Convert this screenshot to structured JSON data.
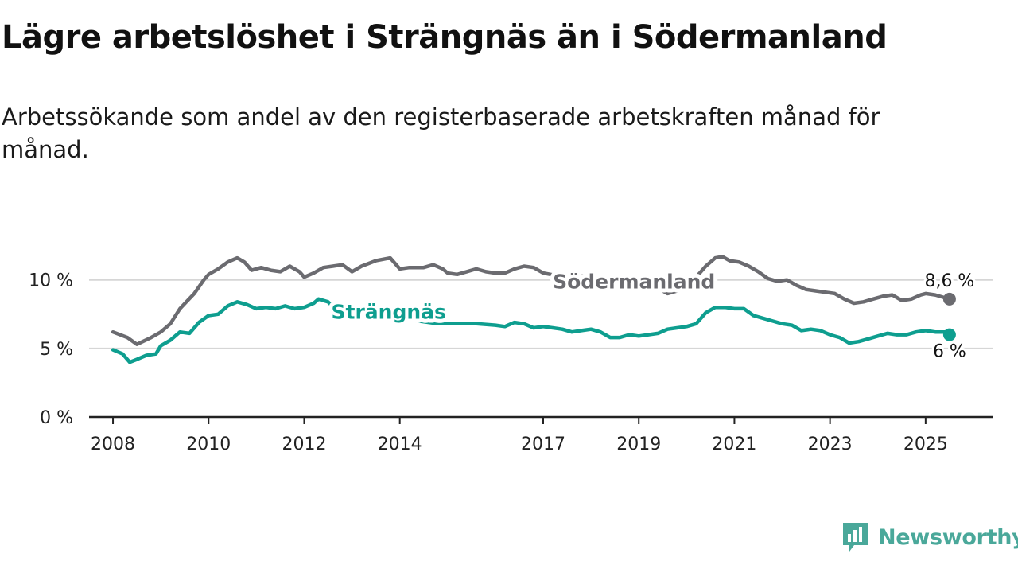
{
  "header": {
    "title": "Lägre arbetslöshet i Strängnäs än i Södermanland",
    "subtitle": "Arbetssökande som andel av den registerbaserade arbetskraften månad för månad."
  },
  "brand": {
    "name": "Newsworthy",
    "icon": "chart-speech-bubble-icon"
  },
  "colors": {
    "sodermanland": "#6b6b70",
    "strangnas": "#0e9e8f",
    "grid": "#d6d6d6",
    "axis": "#222222",
    "brand": "#4aa89a"
  },
  "chart_data": {
    "type": "line",
    "title": "Lägre arbetslöshet i Strängnäs än i Södermanland",
    "subtitle": "Arbetssökande som andel av den registerbaserade arbetskraften månad för månad.",
    "xlabel": "",
    "ylabel": "",
    "xlim": [
      2007.5,
      2026.4
    ],
    "ylim": [
      0,
      13
    ],
    "x_ticks": [
      2008,
      2010,
      2012,
      2014,
      2017,
      2019,
      2021,
      2023,
      2025
    ],
    "x_tick_labels": [
      "2008",
      "2010",
      "2012",
      "2014",
      "2017",
      "2019",
      "2021",
      "2023",
      "2025"
    ],
    "y_ticks": [
      0,
      5,
      10
    ],
    "y_tick_labels": [
      "0 %",
      "5 %",
      "10 %"
    ],
    "grid": true,
    "legend": "inline labels",
    "series": [
      {
        "name": "Södermanland",
        "label": "Södermanland",
        "end_label": "8,6 %",
        "points": [
          [
            2008.0,
            6.2
          ],
          [
            2008.3,
            5.8
          ],
          [
            2008.5,
            5.3
          ],
          [
            2008.8,
            5.8
          ],
          [
            2009.0,
            6.2
          ],
          [
            2009.2,
            6.8
          ],
          [
            2009.4,
            7.9
          ],
          [
            2009.7,
            9.0
          ],
          [
            2009.9,
            10.0
          ],
          [
            2010.0,
            10.4
          ],
          [
            2010.2,
            10.8
          ],
          [
            2010.4,
            11.3
          ],
          [
            2010.6,
            11.6
          ],
          [
            2010.75,
            11.3
          ],
          [
            2010.9,
            10.7
          ],
          [
            2011.1,
            10.9
          ],
          [
            2011.3,
            10.7
          ],
          [
            2011.5,
            10.6
          ],
          [
            2011.7,
            11.0
          ],
          [
            2011.9,
            10.6
          ],
          [
            2012.0,
            10.2
          ],
          [
            2012.2,
            10.5
          ],
          [
            2012.4,
            10.9
          ],
          [
            2012.6,
            11.0
          ],
          [
            2012.8,
            11.1
          ],
          [
            2013.0,
            10.6
          ],
          [
            2013.2,
            11.0
          ],
          [
            2013.5,
            11.4
          ],
          [
            2013.8,
            11.6
          ],
          [
            2014.0,
            10.8
          ],
          [
            2014.2,
            10.9
          ],
          [
            2014.5,
            10.9
          ],
          [
            2014.7,
            11.1
          ],
          [
            2014.9,
            10.8
          ],
          [
            2015.0,
            10.5
          ],
          [
            2015.2,
            10.4
          ],
          [
            2015.4,
            10.6
          ],
          [
            2015.6,
            10.8
          ],
          [
            2015.8,
            10.6
          ],
          [
            2016.0,
            10.5
          ],
          [
            2016.2,
            10.5
          ],
          [
            2016.4,
            10.8
          ],
          [
            2016.6,
            11.0
          ],
          [
            2016.8,
            10.9
          ],
          [
            2017.0,
            10.5
          ],
          [
            2017.3,
            10.3
          ],
          [
            2017.6,
            10.2
          ],
          [
            2017.9,
            10.3
          ],
          [
            2018.3,
            10.0
          ],
          [
            2018.7,
            9.9
          ],
          [
            2019.0,
            9.8
          ],
          [
            2019.3,
            9.6
          ],
          [
            2019.6,
            9.0
          ],
          [
            2019.9,
            9.3
          ],
          [
            2020.2,
            10.2
          ],
          [
            2020.4,
            11.0
          ],
          [
            2020.6,
            11.6
          ],
          [
            2020.75,
            11.7
          ],
          [
            2020.9,
            11.4
          ],
          [
            2021.1,
            11.3
          ],
          [
            2021.3,
            11.0
          ],
          [
            2021.5,
            10.6
          ],
          [
            2021.7,
            10.1
          ],
          [
            2021.9,
            9.9
          ],
          [
            2022.1,
            10.0
          ],
          [
            2022.3,
            9.6
          ],
          [
            2022.5,
            9.3
          ],
          [
            2022.7,
            9.2
          ],
          [
            2022.9,
            9.1
          ],
          [
            2023.1,
            9.0
          ],
          [
            2023.3,
            8.6
          ],
          [
            2023.5,
            8.3
          ],
          [
            2023.7,
            8.4
          ],
          [
            2023.9,
            8.6
          ],
          [
            2024.1,
            8.8
          ],
          [
            2024.3,
            8.9
          ],
          [
            2024.5,
            8.5
          ],
          [
            2024.7,
            8.6
          ],
          [
            2024.9,
            8.9
          ],
          [
            2025.0,
            9.0
          ],
          [
            2025.2,
            8.9
          ],
          [
            2025.4,
            8.7
          ],
          [
            2025.5,
            8.6
          ]
        ]
      },
      {
        "name": "Strängnäs",
        "label": "Strängnäs",
        "end_label": "6 %",
        "points": [
          [
            2008.0,
            4.9
          ],
          [
            2008.2,
            4.6
          ],
          [
            2008.35,
            4.0
          ],
          [
            2008.5,
            4.2
          ],
          [
            2008.7,
            4.5
          ],
          [
            2008.9,
            4.6
          ],
          [
            2009.0,
            5.2
          ],
          [
            2009.2,
            5.6
          ],
          [
            2009.4,
            6.2
          ],
          [
            2009.6,
            6.1
          ],
          [
            2009.8,
            6.9
          ],
          [
            2010.0,
            7.4
          ],
          [
            2010.2,
            7.5
          ],
          [
            2010.4,
            8.1
          ],
          [
            2010.6,
            8.4
          ],
          [
            2010.8,
            8.2
          ],
          [
            2011.0,
            7.9
          ],
          [
            2011.2,
            8.0
          ],
          [
            2011.4,
            7.9
          ],
          [
            2011.6,
            8.1
          ],
          [
            2011.8,
            7.9
          ],
          [
            2012.0,
            8.0
          ],
          [
            2012.2,
            8.3
          ],
          [
            2012.3,
            8.6
          ],
          [
            2012.5,
            8.4
          ],
          [
            2012.7,
            7.7
          ],
          [
            2012.9,
            7.9
          ],
          [
            2013.2,
            7.7
          ],
          [
            2013.6,
            7.4
          ],
          [
            2014.0,
            7.2
          ],
          [
            2014.4,
            7.0
          ],
          [
            2014.8,
            6.8
          ],
          [
            2015.2,
            6.8
          ],
          [
            2015.6,
            6.8
          ],
          [
            2016.0,
            6.7
          ],
          [
            2016.2,
            6.6
          ],
          [
            2016.4,
            6.9
          ],
          [
            2016.6,
            6.8
          ],
          [
            2016.8,
            6.5
          ],
          [
            2017.0,
            6.6
          ],
          [
            2017.2,
            6.5
          ],
          [
            2017.4,
            6.4
          ],
          [
            2017.6,
            6.2
          ],
          [
            2017.8,
            6.3
          ],
          [
            2018.0,
            6.4
          ],
          [
            2018.2,
            6.2
          ],
          [
            2018.4,
            5.8
          ],
          [
            2018.6,
            5.8
          ],
          [
            2018.8,
            6.0
          ],
          [
            2019.0,
            5.9
          ],
          [
            2019.2,
            6.0
          ],
          [
            2019.4,
            6.1
          ],
          [
            2019.6,
            6.4
          ],
          [
            2019.8,
            6.5
          ],
          [
            2020.0,
            6.6
          ],
          [
            2020.2,
            6.8
          ],
          [
            2020.4,
            7.6
          ],
          [
            2020.6,
            8.0
          ],
          [
            2020.8,
            8.0
          ],
          [
            2021.0,
            7.9
          ],
          [
            2021.2,
            7.9
          ],
          [
            2021.4,
            7.4
          ],
          [
            2021.6,
            7.2
          ],
          [
            2021.8,
            7.0
          ],
          [
            2022.0,
            6.8
          ],
          [
            2022.2,
            6.7
          ],
          [
            2022.4,
            6.3
          ],
          [
            2022.6,
            6.4
          ],
          [
            2022.8,
            6.3
          ],
          [
            2023.0,
            6.0
          ],
          [
            2023.2,
            5.8
          ],
          [
            2023.4,
            5.4
          ],
          [
            2023.6,
            5.5
          ],
          [
            2023.8,
            5.7
          ],
          [
            2024.0,
            5.9
          ],
          [
            2024.2,
            6.1
          ],
          [
            2024.4,
            6.0
          ],
          [
            2024.6,
            6.0
          ],
          [
            2024.8,
            6.2
          ],
          [
            2025.0,
            6.3
          ],
          [
            2025.2,
            6.2
          ],
          [
            2025.4,
            6.2
          ],
          [
            2025.5,
            6.0
          ]
        ]
      }
    ]
  }
}
